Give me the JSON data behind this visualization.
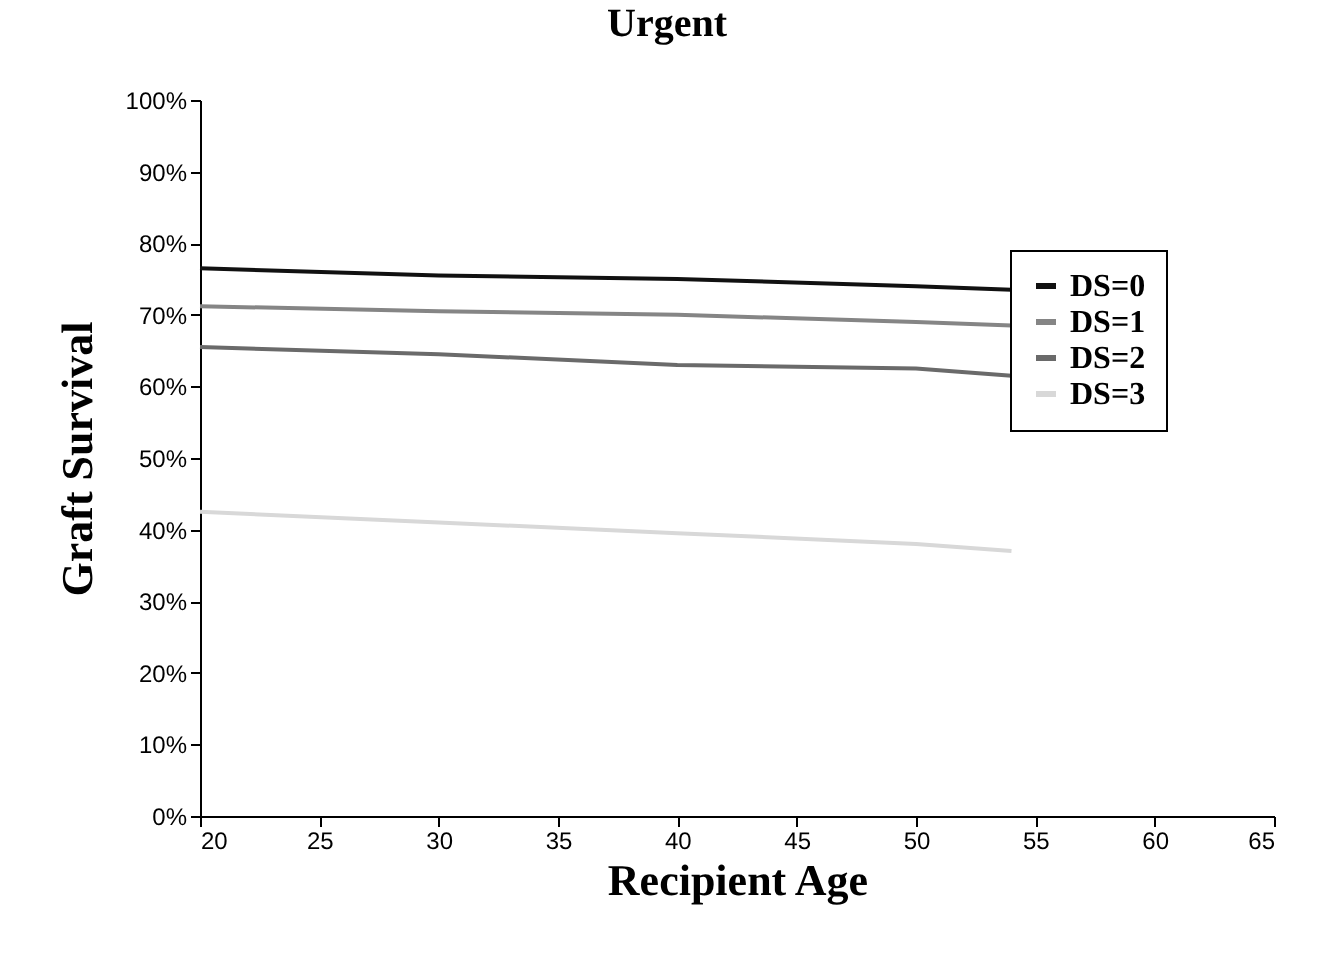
{
  "chart_data": {
    "type": "line",
    "title": "Urgent",
    "xlabel": "Recipient Age",
    "ylabel": "Graft Survival",
    "x": [
      20,
      30,
      40,
      50,
      54
    ],
    "series": [
      {
        "name": "DS=0",
        "color": "#111111",
        "values": [
          76.5,
          75.5,
          75,
          74,
          73.5
        ]
      },
      {
        "name": "DS=1",
        "color": "#858585",
        "values": [
          71.2,
          70.5,
          70,
          69,
          68.5
        ]
      },
      {
        "name": "DS=2",
        "color": "#6a6a6a",
        "values": [
          65.5,
          64.5,
          63,
          62.5,
          61.5
        ]
      },
      {
        "name": "DS=3",
        "color": "#d8d8d8",
        "values": [
          42.5,
          41,
          39.5,
          38,
          37
        ]
      }
    ],
    "xlim": [
      20,
      65
    ],
    "xticks": [
      20,
      25,
      30,
      35,
      40,
      45,
      50,
      55,
      60,
      65
    ],
    "ylim": [
      0,
      100
    ],
    "yticks": [
      {
        "value": 0,
        "label": "0%"
      },
      {
        "value": 10,
        "label": "10%"
      },
      {
        "value": 20,
        "label": "20%"
      },
      {
        "value": 30,
        "label": "30%"
      },
      {
        "value": 40,
        "label": "40%"
      },
      {
        "value": 50,
        "label": "50%"
      },
      {
        "value": 60,
        "label": "60%"
      },
      {
        "value": 70,
        "label": "70%"
      },
      {
        "value": 80,
        "label": "80%"
      },
      {
        "value": 90,
        "label": "90%"
      },
      {
        "value": 100,
        "label": "100%"
      }
    ],
    "legend": "right",
    "grid": false,
    "marker": "none",
    "line_style": "solid"
  }
}
